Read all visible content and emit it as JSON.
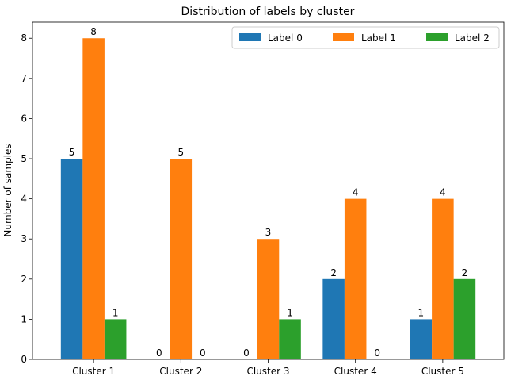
{
  "chart_data": {
    "type": "bar",
    "title": "Distribution of labels by cluster",
    "xlabel": "",
    "ylabel": "Number of samples",
    "categories": [
      "Cluster 1",
      "Cluster 2",
      "Cluster 3",
      "Cluster 4",
      "Cluster 5"
    ],
    "series": [
      {
        "name": "Label 0",
        "color": "#1f77b4",
        "values": [
          5,
          0,
          0,
          2,
          1
        ]
      },
      {
        "name": "Label 1",
        "color": "#ff7f0e",
        "values": [
          8,
          5,
          3,
          4,
          4
        ]
      },
      {
        "name": "Label 2",
        "color": "#2ca02c",
        "values": [
          1,
          0,
          1,
          0,
          2
        ]
      }
    ],
    "ylim": [
      0,
      8.4
    ],
    "yticks": [
      0,
      1,
      2,
      3,
      4,
      5,
      6,
      7,
      8
    ],
    "grid": false,
    "legend_position": "top-right",
    "legend_columns": 3
  }
}
